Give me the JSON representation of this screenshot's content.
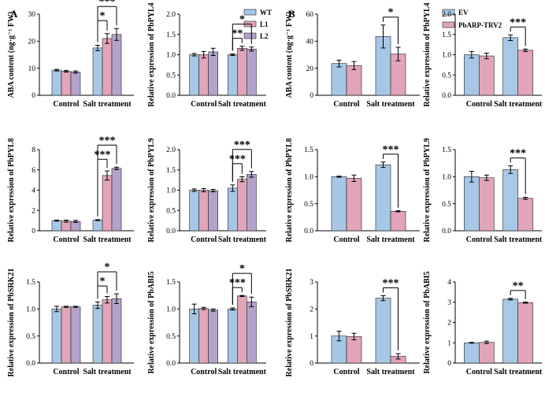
{
  "panel_labels": [
    "A",
    "B"
  ],
  "colors": {
    "WT": "#a6c8e6",
    "L1": "#e2a4b8",
    "L2": "#b3a3cb",
    "EV": "#a6c8e6",
    "PbARP-TRV2": "#e2a4b8"
  },
  "legends": [
    {
      "group": "A",
      "entries": [
        "WT",
        "L1",
        "L2"
      ]
    },
    {
      "group": "B",
      "entries": [
        "EV",
        "PbARP-TRV2"
      ]
    }
  ],
  "chart_data": [
    {
      "type": "bar",
      "group": "A",
      "ylabel": "ABA content (ng·g⁻¹ FW)",
      "ylim": [
        0,
        30
      ],
      "yticks": [
        0,
        10,
        20,
        30
      ],
      "categories": [
        "Control",
        "Salt treatment"
      ],
      "series": [
        {
          "name": "WT",
          "values": [
            9.3,
            17.5
          ],
          "errors": [
            0.3,
            1.0
          ]
        },
        {
          "name": "L1",
          "values": [
            8.9,
            21.0
          ],
          "errors": [
            0.3,
            1.8
          ]
        },
        {
          "name": "L2",
          "values": [
            8.6,
            22.5
          ],
          "errors": [
            0.4,
            2.2
          ]
        }
      ],
      "annotations": [
        {
          "text": "***",
          "from": 0,
          "to": 2,
          "level": 0
        },
        {
          "text": "*",
          "from": 0,
          "to": 1,
          "level": 1
        }
      ]
    },
    {
      "type": "bar",
      "group": "A",
      "ylabel": "Relative expression of PbPYL4",
      "ylim": [
        0,
        2.0
      ],
      "yticks": [
        0,
        0.5,
        1.0,
        1.5,
        2.0
      ],
      "categories": [
        "Control",
        "Salt treatment"
      ],
      "series": [
        {
          "name": "WT",
          "values": [
            1.0,
            1.0
          ],
          "errors": [
            0.03,
            0.02
          ]
        },
        {
          "name": "L1",
          "values": [
            1.0,
            1.16
          ],
          "errors": [
            0.08,
            0.05
          ]
        },
        {
          "name": "L2",
          "values": [
            1.07,
            1.14
          ],
          "errors": [
            0.09,
            0.05
          ]
        }
      ],
      "annotations": [
        {
          "text": "*",
          "from": 0,
          "to": 2,
          "level": 0
        },
        {
          "text": "**",
          "from": 0,
          "to": 1,
          "level": 1
        }
      ]
    },
    {
      "type": "bar",
      "group": "B",
      "ylabel": "ABA content (ng·g⁻¹ FW)",
      "ylim": [
        0,
        60
      ],
      "yticks": [
        0,
        20,
        40,
        60
      ],
      "categories": [
        "Control",
        "Salt treatment"
      ],
      "series": [
        {
          "name": "EV",
          "values": [
            23.5,
            43.5
          ],
          "errors": [
            2.5,
            8.5
          ]
        },
        {
          "name": "PbARP-TRV2",
          "values": [
            22.0,
            30.5
          ],
          "errors": [
            3.0,
            5.0
          ]
        }
      ],
      "annotations": [
        {
          "text": "*",
          "from": 0,
          "to": 1,
          "level": 0
        }
      ]
    },
    {
      "type": "bar",
      "group": "B",
      "ylabel": "Relative expression of PbPYL4",
      "ylim": [
        0,
        2.0
      ],
      "yticks": [
        0,
        0.5,
        1.0,
        1.5,
        2.0
      ],
      "categories": [
        "Control",
        "Salt treatment"
      ],
      "series": [
        {
          "name": "EV",
          "values": [
            1.0,
            1.42
          ],
          "errors": [
            0.08,
            0.07
          ]
        },
        {
          "name": "PbARP-TRV2",
          "values": [
            0.97,
            1.11
          ],
          "errors": [
            0.07,
            0.03
          ]
        }
      ],
      "annotations": [
        {
          "text": "***",
          "from": 0,
          "to": 1,
          "level": 0
        }
      ]
    },
    {
      "type": "bar",
      "group": "A",
      "ylabel": "Relative expression of PbPYL8",
      "ylim": [
        0,
        8
      ],
      "yticks": [
        0,
        2,
        4,
        6,
        8
      ],
      "categories": [
        "Control",
        "Salt treatment"
      ],
      "series": [
        {
          "name": "WT",
          "values": [
            1.0,
            1.05
          ],
          "errors": [
            0.05,
            0.05
          ]
        },
        {
          "name": "L1",
          "values": [
            0.95,
            5.45
          ],
          "errors": [
            0.1,
            0.45
          ]
        },
        {
          "name": "L2",
          "values": [
            0.92,
            6.15
          ],
          "errors": [
            0.1,
            0.12
          ]
        }
      ],
      "annotations": [
        {
          "text": "***",
          "from": 0,
          "to": 2,
          "level": 0
        },
        {
          "text": "***",
          "from": 0,
          "to": 1,
          "level": 1
        }
      ]
    },
    {
      "type": "bar",
      "group": "A",
      "ylabel": "Relative expression of PbPYL9",
      "ylim": [
        0,
        2.0
      ],
      "yticks": [
        0,
        0.5,
        1.0,
        1.5,
        2.0
      ],
      "categories": [
        "Control",
        "Salt treatment"
      ],
      "series": [
        {
          "name": "WT",
          "values": [
            1.0,
            1.05
          ],
          "errors": [
            0.03,
            0.08
          ]
        },
        {
          "name": "L1",
          "values": [
            1.0,
            1.27
          ],
          "errors": [
            0.04,
            0.06
          ]
        },
        {
          "name": "L2",
          "values": [
            0.99,
            1.39
          ],
          "errors": [
            0.03,
            0.07
          ]
        }
      ],
      "annotations": [
        {
          "text": "***",
          "from": 0,
          "to": 2,
          "level": 0
        },
        {
          "text": "***",
          "from": 0,
          "to": 1,
          "level": 1
        }
      ]
    },
    {
      "type": "bar",
      "group": "B",
      "ylabel": "Relative expression of PbPYL8",
      "ylim": [
        0,
        1.5
      ],
      "yticks": [
        0,
        0.5,
        1.0,
        1.5
      ],
      "categories": [
        "Control",
        "Salt treatment"
      ],
      "series": [
        {
          "name": "EV",
          "values": [
            1.0,
            1.22
          ],
          "errors": [
            0.01,
            0.05
          ]
        },
        {
          "name": "PbARP-TRV2",
          "values": [
            0.97,
            0.36
          ],
          "errors": [
            0.06,
            0.01
          ]
        }
      ],
      "annotations": [
        {
          "text": "***",
          "from": 0,
          "to": 1,
          "level": 0
        }
      ]
    },
    {
      "type": "bar",
      "group": "B",
      "ylabel": "Relative expression of PbPYL9",
      "ylim": [
        0,
        1.5
      ],
      "yticks": [
        0,
        0.5,
        1.0,
        1.5
      ],
      "categories": [
        "Control",
        "Salt treatment"
      ],
      "series": [
        {
          "name": "EV",
          "values": [
            1.0,
            1.13
          ],
          "errors": [
            0.1,
            0.07
          ]
        },
        {
          "name": "PbARP-TRV2",
          "values": [
            0.98,
            0.6
          ],
          "errors": [
            0.05,
            0.02
          ]
        }
      ],
      "annotations": [
        {
          "text": "***",
          "from": 0,
          "to": 1,
          "level": 0
        }
      ]
    },
    {
      "type": "bar",
      "group": "A",
      "ylabel": "Relative expression of PbSRK21",
      "ylim": [
        0,
        1.5
      ],
      "yticks": [
        0,
        0.5,
        1.0,
        1.5
      ],
      "categories": [
        "Control",
        "Salt treatment"
      ],
      "series": [
        {
          "name": "WT",
          "values": [
            1.0,
            1.07
          ],
          "errors": [
            0.05,
            0.06
          ]
        },
        {
          "name": "L1",
          "values": [
            1.04,
            1.17
          ],
          "errors": [
            0.01,
            0.06
          ]
        },
        {
          "name": "L2",
          "values": [
            1.04,
            1.19
          ],
          "errors": [
            0.01,
            0.09
          ]
        }
      ],
      "annotations": [
        {
          "text": "*",
          "from": 0,
          "to": 2,
          "level": 0
        },
        {
          "text": "*",
          "from": 0,
          "to": 1,
          "level": 1
        }
      ]
    },
    {
      "type": "bar",
      "group": "A",
      "ylabel": "Relative expression of PbABI5",
      "ylim": [
        0,
        1.5
      ],
      "yticks": [
        0,
        0.5,
        1.0,
        1.5
      ],
      "categories": [
        "Control",
        "Salt treatment"
      ],
      "series": [
        {
          "name": "WT",
          "values": [
            1.0,
            1.0
          ],
          "errors": [
            0.09,
            0.02
          ]
        },
        {
          "name": "L1",
          "values": [
            1.01,
            1.24
          ],
          "errors": [
            0.02,
            0.01
          ]
        },
        {
          "name": "L2",
          "values": [
            0.98,
            1.13
          ],
          "errors": [
            0.02,
            0.09
          ]
        }
      ],
      "annotations": [
        {
          "text": "*",
          "from": 0,
          "to": 2,
          "level": 0
        },
        {
          "text": "***",
          "from": 0,
          "to": 1,
          "level": 1
        }
      ]
    },
    {
      "type": "bar",
      "group": "B",
      "ylabel": "Relative expression of PbSRK21",
      "ylim": [
        0,
        3
      ],
      "yticks": [
        0,
        1,
        2,
        3
      ],
      "categories": [
        "Control",
        "Salt treatment"
      ],
      "series": [
        {
          "name": "EV",
          "values": [
            1.0,
            2.4
          ],
          "errors": [
            0.18,
            0.09
          ]
        },
        {
          "name": "PbARP-TRV2",
          "values": [
            0.98,
            0.25
          ],
          "errors": [
            0.12,
            0.1
          ]
        }
      ],
      "annotations": [
        {
          "text": "***",
          "from": 0,
          "to": 1,
          "level": 0
        }
      ]
    },
    {
      "type": "bar",
      "group": "B",
      "ylabel": "Relative expression of PbABI5",
      "ylim": [
        0,
        4
      ],
      "yticks": [
        0,
        1,
        2,
        3,
        4
      ],
      "categories": [
        "Control",
        "Salt treatment"
      ],
      "series": [
        {
          "name": "EV",
          "values": [
            1.0,
            3.15
          ],
          "errors": [
            0.02,
            0.04
          ]
        },
        {
          "name": "PbARP-TRV2",
          "values": [
            1.02,
            2.98
          ],
          "errors": [
            0.06,
            0.03
          ]
        }
      ],
      "annotations": [
        {
          "text": "**",
          "from": 0,
          "to": 1,
          "level": 0
        }
      ]
    }
  ]
}
